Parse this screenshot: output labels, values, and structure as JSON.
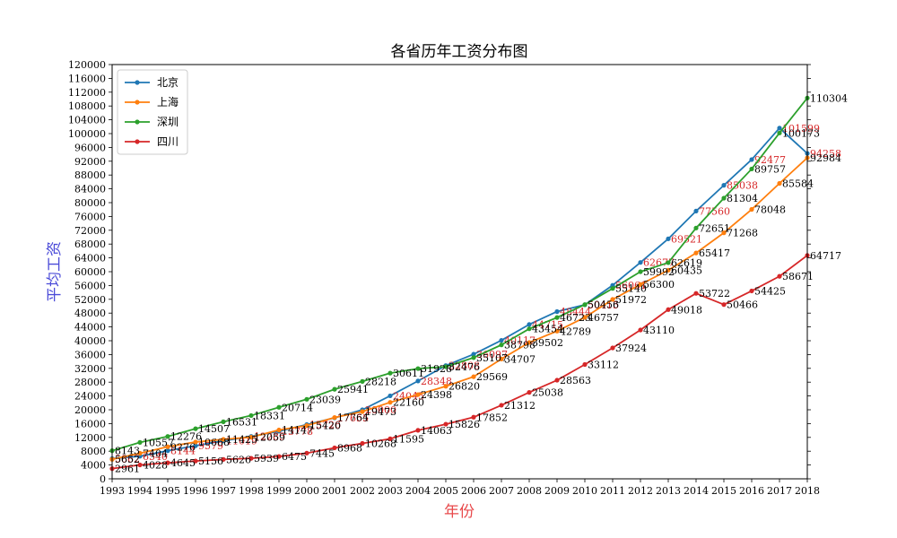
{
  "chart_data": {
    "type": "line",
    "title": "各省历年工资分布图",
    "xlabel": "年份",
    "ylabel": "平均工资",
    "xlabel_color": "#e8494b",
    "ylabel_color": "#4b4bd8",
    "x": [
      1993,
      1994,
      1995,
      1996,
      1997,
      1998,
      1999,
      2000,
      2001,
      2002,
      2003,
      2004,
      2005,
      2006,
      2007,
      2008,
      2009,
      2010,
      2011,
      2012,
      2013,
      2014,
      2015,
      2016,
      2017,
      2018
    ],
    "xlim": [
      1993,
      2018
    ],
    "ylim": [
      0,
      120000
    ],
    "ytick_step": 4000,
    "legend_position": "upper-left",
    "grid": false,
    "series": [
      {
        "name": "北京",
        "color": "#1f77b4",
        "label_color": "#d62728",
        "values": [
          5862,
          6540,
          8144,
          9579,
          11019,
          12285,
          13778,
          15726,
          17655,
          20000,
          24045,
          28348,
          32808,
          36097,
          40117,
          44715,
          48444,
          50415,
          56061,
          62677,
          69521,
          77560,
          85038,
          92477,
          101599,
          94258
        ]
      },
      {
        "name": "上海",
        "color": "#ff7f0e",
        "label_color": "#000000",
        "values": [
          5652,
          7404,
          9276,
          10668,
          11425,
          12059,
          14147,
          15420,
          17764,
          19473,
          22160,
          24398,
          26820,
          29569,
          34707,
          39502,
          42789,
          46757,
          51972,
          56300,
          60435,
          65417,
          71268,
          78048,
          85584,
          92984
        ]
      },
      {
        "name": "深圳",
        "color": "#2ca02c",
        "label_color": "#000000",
        "values": [
          8143,
          10557,
          12276,
          14507,
          16531,
          18331,
          20714,
          23039,
          25941,
          28218,
          30611,
          31928,
          32476,
          35107,
          38798,
          43454,
          46723,
          50456,
          55140,
          59992,
          62619,
          72651,
          81304,
          89757,
          100173,
          110304
        ]
      },
      {
        "name": "四川",
        "color": "#d62728",
        "label_color": "#000000",
        "values": [
          2961,
          4028,
          4645,
          5156,
          5626,
          5939,
          6475,
          7445,
          8968,
          10268,
          11595,
          14063,
          15826,
          17852,
          21312,
          25038,
          28563,
          33112,
          37924,
          43110,
          49018,
          53722,
          50466,
          54425,
          58671,
          64717
        ]
      }
    ]
  }
}
